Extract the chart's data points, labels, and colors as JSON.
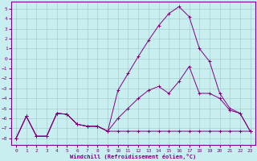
{
  "xlabel": "Windchill (Refroidissement éolien,°C)",
  "bg_color": "#c8eef0",
  "line_color": "#800080",
  "grid_color": "#aacccc",
  "xlim": [
    -0.5,
    23.5
  ],
  "ylim": [
    -8.7,
    5.7
  ],
  "yticks": [
    5,
    4,
    3,
    2,
    1,
    0,
    -1,
    -2,
    -3,
    -4,
    -5,
    -6,
    -7,
    -8
  ],
  "xticks": [
    0,
    1,
    2,
    3,
    4,
    5,
    6,
    7,
    8,
    9,
    10,
    11,
    12,
    13,
    14,
    15,
    16,
    17,
    18,
    19,
    20,
    21,
    22,
    23
  ],
  "line1_x": [
    0,
    1,
    2,
    3,
    4,
    5,
    6,
    7,
    8,
    9,
    10,
    11,
    12,
    13,
    14,
    15,
    16,
    17,
    18,
    19,
    20,
    21,
    22,
    23
  ],
  "line1_y": [
    -8.0,
    -5.8,
    -7.8,
    -7.8,
    -5.5,
    -5.6,
    -6.6,
    -6.8,
    -6.8,
    -7.3,
    -7.3,
    -7.3,
    -7.3,
    -7.3,
    -7.3,
    -7.3,
    -7.3,
    -7.3,
    -7.3,
    -7.3,
    -7.3,
    -7.3,
    -7.3,
    -7.3
  ],
  "line2_x": [
    0,
    1,
    2,
    3,
    4,
    5,
    6,
    7,
    8,
    9,
    10,
    11,
    12,
    13,
    14,
    15,
    16,
    17,
    18,
    19,
    20,
    21,
    22,
    23
  ],
  "line2_y": [
    -8.0,
    -5.8,
    -7.8,
    -7.8,
    -5.5,
    -5.6,
    -6.6,
    -6.8,
    -6.8,
    -7.3,
    -6.0,
    -5.0,
    -4.0,
    -3.2,
    -2.8,
    -3.5,
    -2.3,
    -0.8,
    -3.5,
    -3.5,
    -4.0,
    -5.2,
    -5.5,
    -7.3
  ],
  "line3_x": [
    0,
    1,
    2,
    3,
    4,
    5,
    6,
    7,
    8,
    9,
    10,
    11,
    12,
    13,
    14,
    15,
    16,
    17,
    18,
    19,
    20,
    21,
    22,
    23
  ],
  "line3_y": [
    -8.0,
    -5.8,
    -7.8,
    -7.8,
    -5.5,
    -5.6,
    -6.6,
    -6.8,
    -6.8,
    -7.3,
    -3.2,
    -1.5,
    0.2,
    1.8,
    3.3,
    4.5,
    5.2,
    4.2,
    1.0,
    -0.3,
    -3.5,
    -5.0,
    -5.5,
    -7.3
  ]
}
